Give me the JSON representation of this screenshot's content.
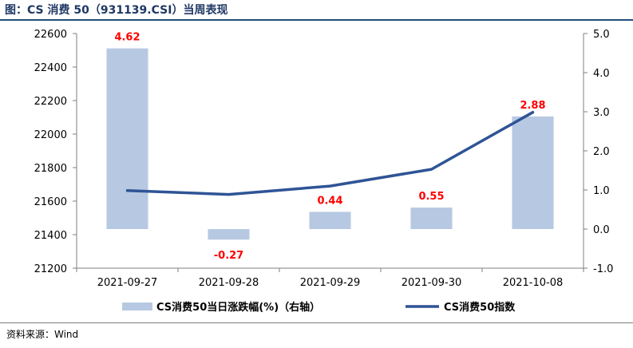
{
  "header": {
    "title": "图：CS 消费 50（931139.CSI）当周表现"
  },
  "footer": {
    "source": "资料来源：Wind"
  },
  "colors": {
    "bar": "#b7c9e2",
    "line": "#2f5496",
    "label": "#ff0000"
  },
  "chart_data": {
    "type": "bar",
    "categories": [
      "2021-09-27",
      "2021-09-28",
      "2021-09-29",
      "2021-09-30",
      "2021-10-08"
    ],
    "series": [
      {
        "name": "CS消费50当日涨跌幅(%)（右轴）",
        "type": "bar",
        "axis": "right",
        "values": [
          4.62,
          -0.27,
          0.44,
          0.55,
          2.88
        ],
        "labels": [
          "4.62",
          "-0.27",
          "0.44",
          "0.55",
          "2.88"
        ]
      },
      {
        "name": "CS消费50指数",
        "type": "line",
        "axis": "left",
        "values": [
          21663,
          21640,
          21690,
          21790,
          22130
        ]
      }
    ],
    "left_axis": {
      "ylim": [
        21200,
        22600
      ],
      "ticks": [
        "21200",
        "21400",
        "21600",
        "21800",
        "22000",
        "22200",
        "22400",
        "22600"
      ]
    },
    "right_axis": {
      "ylim": [
        -1.0,
        5.0
      ],
      "ticks": [
        "-1.0",
        "0.0",
        "1.0",
        "2.0",
        "3.0",
        "4.0",
        "5.0"
      ]
    },
    "legend_position": "bottom"
  }
}
